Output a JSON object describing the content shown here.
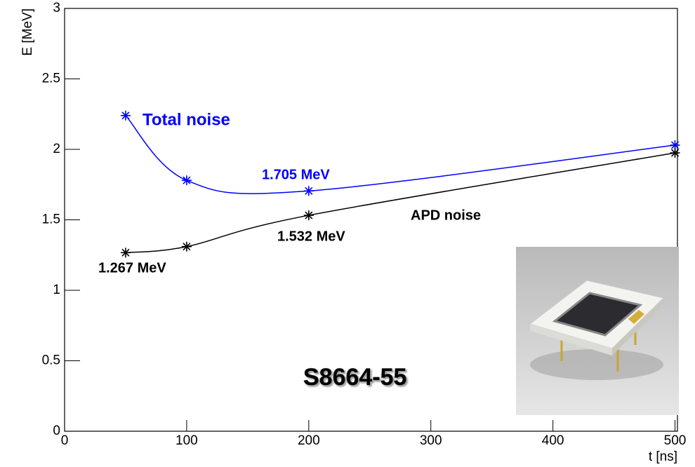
{
  "chart_data": {
    "type": "line",
    "xlabel": "t [ns]",
    "ylabel": "E [MeV]",
    "x": [
      50,
      100,
      200,
      500
    ],
    "series": [
      {
        "name": "Total noise",
        "color": "#0000ff",
        "values": [
          2.24,
          1.78,
          1.705,
          2.03
        ]
      },
      {
        "name": "APD noise",
        "color": "#000000",
        "values": [
          1.267,
          1.31,
          1.532,
          1.975
        ]
      }
    ],
    "annotations": [
      {
        "text": "Total noise",
        "color": "#0000ff"
      },
      {
        "text": "1.705 MeV",
        "color": "#0000ff"
      },
      {
        "text": "APD noise",
        "color": "#000000"
      },
      {
        "text": "1.532 MeV",
        "color": "#000000"
      },
      {
        "text": "1.267 MeV",
        "color": "#000000"
      },
      {
        "text": "S8664-55",
        "color": "#000000"
      }
    ],
    "xlim": [
      0,
      502
    ],
    "xticks": [
      0,
      100,
      200,
      300,
      400,
      500
    ],
    "ylim": [
      0,
      3
    ],
    "yticks": [
      0,
      0.5,
      1,
      1.5,
      2,
      2.5,
      3
    ]
  }
}
